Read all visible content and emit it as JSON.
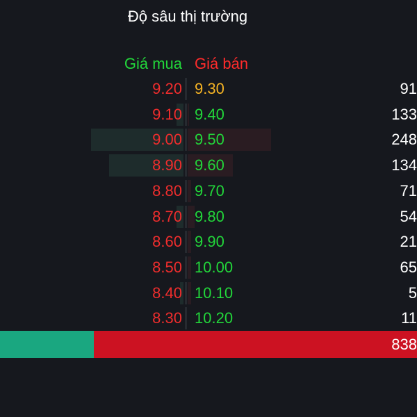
{
  "title": "Độ sâu thị trường",
  "headers": {
    "bid": "Giá mua",
    "ask": "Giá bán"
  },
  "colors": {
    "bid_header": "#22d63a",
    "ask_header": "#ff2b2b",
    "down": "#ef2d2d",
    "up": "#22d63a",
    "reference": "#f5b324",
    "total_buy_bar": "#1aa780",
    "total_sell_bar": "#cc1222"
  },
  "rows": [
    {
      "bid": "9.20",
      "ask": "9.30",
      "ask_color": "#f5b324",
      "volume": "91",
      "bid_depth": 0.0,
      "ask_depth": 0.0
    },
    {
      "bid": "9.10",
      "ask": "9.40",
      "ask_color": "#22d63a",
      "volume": "133",
      "bid_depth": 0.04,
      "ask_depth": 0.02
    },
    {
      "bid": "9.00",
      "ask": "9.50",
      "ask_color": "#22d63a",
      "volume": "248",
      "bid_depth": 0.51,
      "ask_depth": 1.0
    },
    {
      "bid": "8.90",
      "ask": "9.60",
      "ask_color": "#22d63a",
      "volume": "134",
      "bid_depth": 0.41,
      "ask_depth": 0.54
    },
    {
      "bid": "8.80",
      "ask": "9.70",
      "ask_color": "#22d63a",
      "volume": "71",
      "bid_depth": 0.0,
      "ask_depth": 0.04
    },
    {
      "bid": "8.70",
      "ask": "9.80",
      "ask_color": "#22d63a",
      "volume": "54",
      "bid_depth": 0.04,
      "ask_depth": 0.08
    },
    {
      "bid": "8.60",
      "ask": "9.90",
      "ask_color": "#22d63a",
      "volume": "21",
      "bid_depth": 0.0,
      "ask_depth": 0.04
    },
    {
      "bid": "8.50",
      "ask": "10.00",
      "ask_color": "#22d63a",
      "volume": "65",
      "bid_depth": 0.0,
      "ask_depth": 0.04
    },
    {
      "bid": "8.40",
      "ask": "10.10",
      "ask_color": "#22d63a",
      "volume": "5",
      "bid_depth": 0.02,
      "ask_depth": 0.04
    },
    {
      "bid": "8.30",
      "ask": "10.20",
      "ask_color": "#22d63a",
      "volume": "11",
      "bid_depth": 0.0,
      "ask_depth": 0.0
    }
  ],
  "total": {
    "sell_volume": "838",
    "buy_fraction": 0.225
  }
}
